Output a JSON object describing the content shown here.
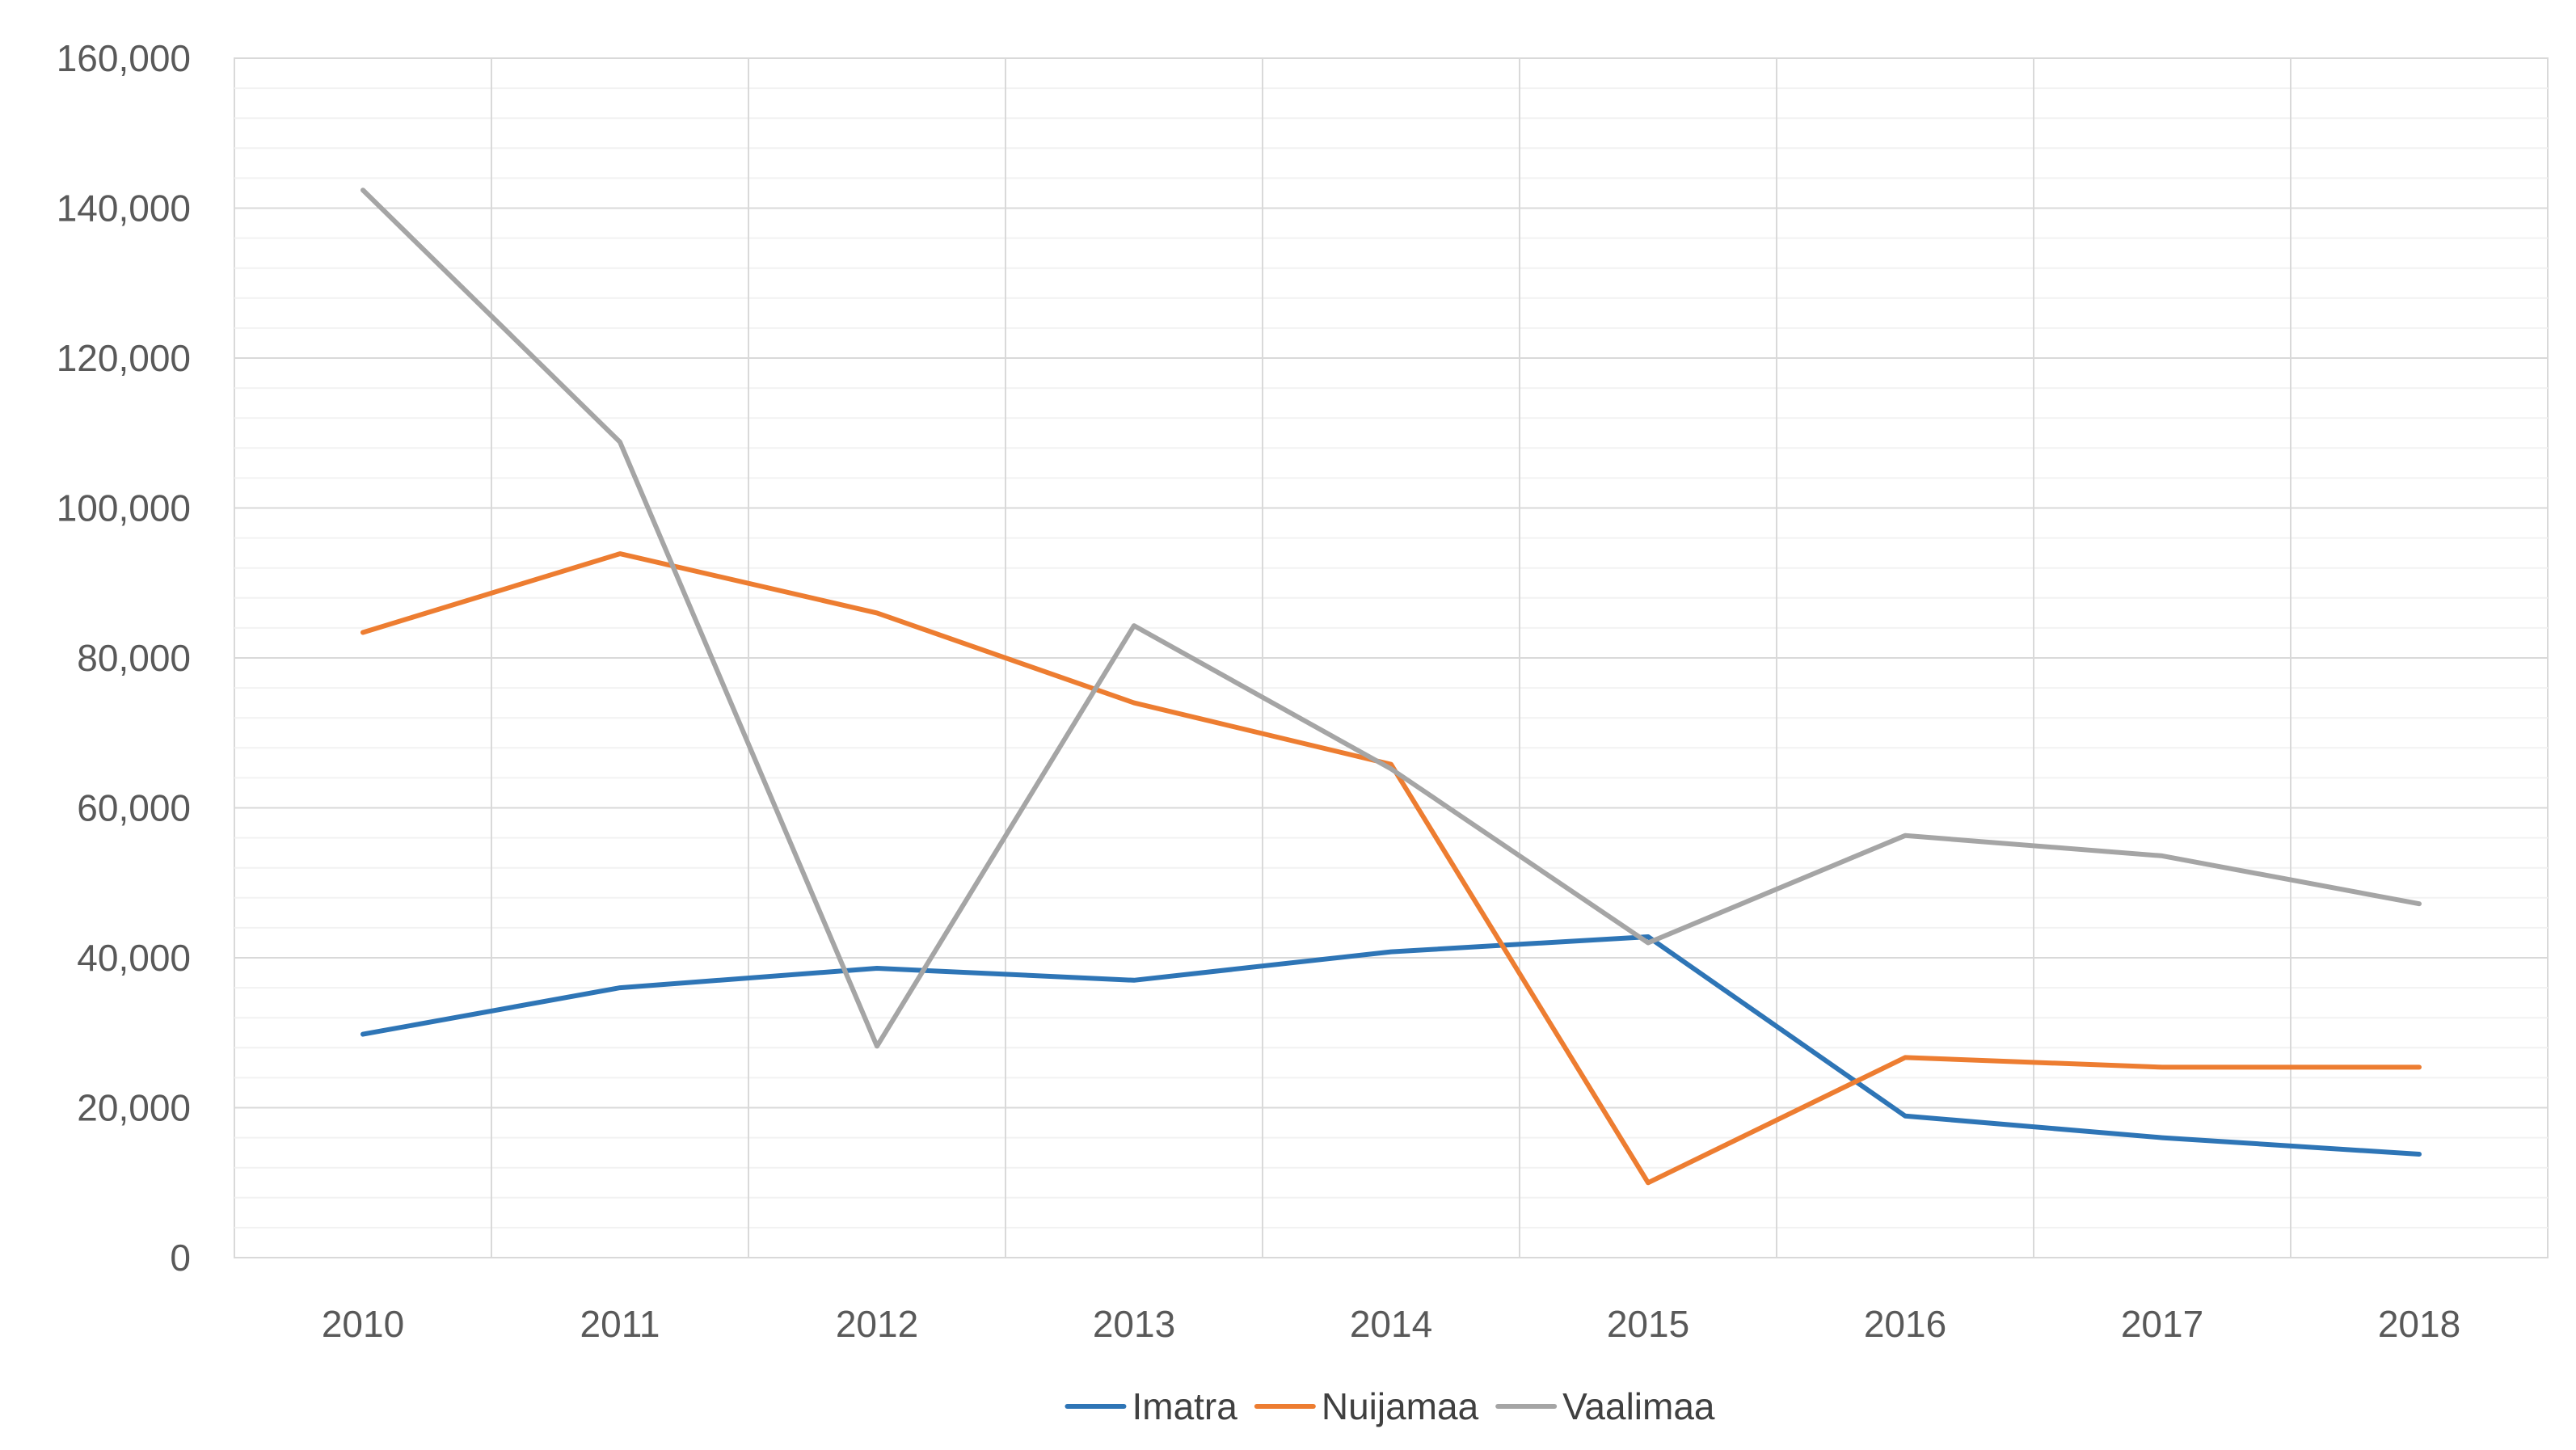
{
  "chart_data": {
    "type": "line",
    "title": "",
    "xlabel": "",
    "ylabel": "",
    "categories": [
      "2010",
      "2011",
      "2012",
      "2013",
      "2014",
      "2015",
      "2016",
      "2017",
      "2018"
    ],
    "ylim": [
      0,
      160000
    ],
    "yticks": [
      0,
      20000,
      40000,
      60000,
      80000,
      100000,
      120000,
      140000,
      160000
    ],
    "ytick_labels": [
      "0",
      "20,000",
      "40,000",
      "60,000",
      "80,000",
      "100,000",
      "120,000",
      "140,000",
      "160,000"
    ],
    "grid": true,
    "legend_position": "bottom",
    "series": [
      {
        "name": "Imatra",
        "color": "#2E75B6",
        "values": [
          29800,
          36000,
          38600,
          37000,
          40800,
          42800,
          18900,
          16000,
          13800
        ]
      },
      {
        "name": "Nuijamaa",
        "color": "#ED7D31",
        "values": [
          83400,
          93900,
          86000,
          74000,
          65800,
          10000,
          26700,
          25400,
          25400
        ]
      },
      {
        "name": "Vaalimaa",
        "color": "#A5A5A5",
        "values": [
          142400,
          108800,
          28200,
          84300,
          65200,
          42000,
          56300,
          53600,
          47200
        ]
      }
    ]
  }
}
